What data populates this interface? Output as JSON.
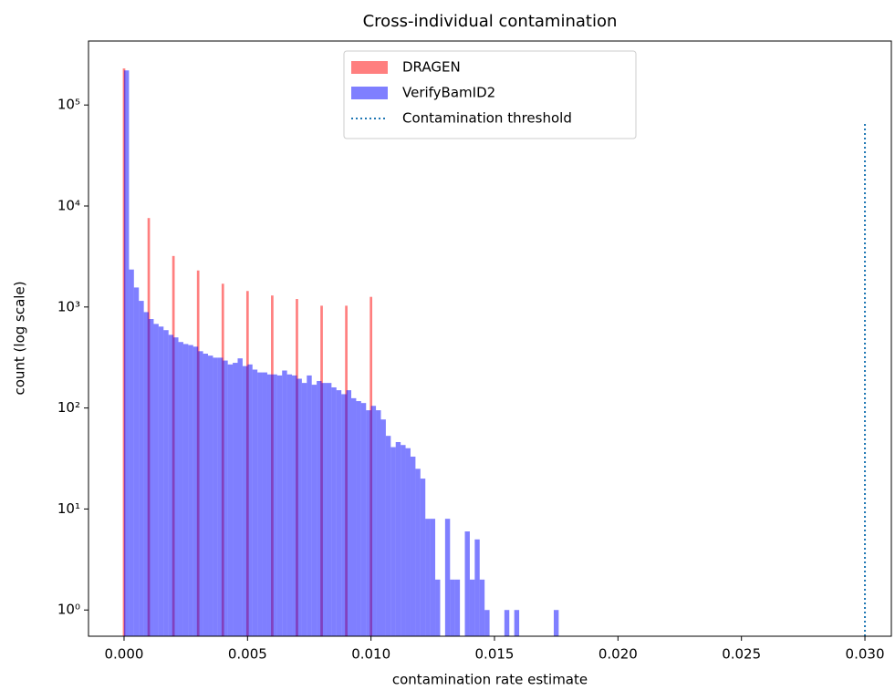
{
  "chart_data": {
    "type": "histogram",
    "title": "Cross-individual contamination",
    "xlabel": "contamination rate estimate",
    "ylabel": "count (log scale)",
    "yscale": "log",
    "xlim": [
      -0.00144,
      0.03107
    ],
    "ylim": [
      0.55,
      430000
    ],
    "xticks": [
      {
        "value": 0,
        "label": "0.000"
      },
      {
        "value": 0.005,
        "label": "0.005"
      },
      {
        "value": 0.01,
        "label": "0.010"
      },
      {
        "value": 0.015,
        "label": "0.015"
      },
      {
        "value": 0.02,
        "label": "0.020"
      },
      {
        "value": 0.025,
        "label": "0.025"
      },
      {
        "value": 0.03,
        "label": "0.030"
      }
    ],
    "yticks": [
      {
        "value": 1,
        "label": "10⁰"
      },
      {
        "value": 10,
        "label": "10¹"
      },
      {
        "value": 100,
        "label": "10²"
      },
      {
        "value": 1000,
        "label": "10³"
      },
      {
        "value": 10000,
        "label": "10⁴"
      },
      {
        "value": 100000,
        "label": "10⁵"
      }
    ],
    "legend": "upper center",
    "series": [
      {
        "name": "DRAGEN",
        "color": "#ff0000",
        "alpha": 0.5,
        "bins": [
          -5e-05,
          5e-05,
          0.00095,
          0.00105,
          0.00195,
          0.00205,
          0.00295,
          0.00305,
          0.00395,
          0.00405,
          0.00495,
          0.00505,
          0.00595,
          0.00605,
          0.00695,
          0.00705,
          0.00795,
          0.00805,
          0.00895,
          0.00905,
          0.00995,
          0.01005
        ],
        "values": [
          230000,
          0,
          7600,
          0,
          3200,
          0,
          2300,
          0,
          1700,
          0,
          1440,
          0,
          1300,
          0,
          1200,
          0,
          1030,
          0,
          1030,
          0,
          1260
        ]
      },
      {
        "name": "VerifyBamID2",
        "color": "#0000ff",
        "alpha": 0.5,
        "bins": [
          0,
          0.0002,
          0.0004,
          0.0006,
          0.0008,
          0.001,
          0.0012,
          0.0014,
          0.0016,
          0.0018,
          0.002,
          0.0022,
          0.0024,
          0.0026,
          0.0028,
          0.003,
          0.0032,
          0.0034,
          0.0036,
          0.0038,
          0.004,
          0.0042,
          0.0044,
          0.0046,
          0.0048,
          0.005,
          0.0052,
          0.0054,
          0.0056,
          0.0058,
          0.006,
          0.0062,
          0.0064,
          0.0066,
          0.0068,
          0.007,
          0.0072,
          0.0074,
          0.0076,
          0.0078,
          0.008,
          0.0082,
          0.0084,
          0.0086,
          0.0088,
          0.009,
          0.0092,
          0.0094,
          0.0096,
          0.0098,
          0.01,
          0.0102,
          0.0104,
          0.0106,
          0.0108,
          0.011,
          0.0112,
          0.0114,
          0.0116,
          0.0118,
          0.012,
          0.0122,
          0.0124,
          0.0126,
          0.0128,
          0.013,
          0.0132,
          0.0134,
          0.0136,
          0.0138,
          0.014,
          0.0142,
          0.0144,
          0.0146,
          0.0148,
          0.015,
          0.0152,
          0.0154,
          0.0156,
          0.0158,
          0.016,
          0.0162,
          0.0164,
          0.0166,
          0.0168,
          0.017,
          0.0172,
          0.0174,
          0.0176
        ],
        "values": [
          220000,
          2350,
          1560,
          1150,
          890,
          760,
          680,
          640,
          590,
          530,
          500,
          450,
          430,
          420,
          405,
          365,
          345,
          330,
          315,
          315,
          295,
          270,
          280,
          310,
          260,
          270,
          240,
          225,
          225,
          215,
          215,
          210,
          235,
          215,
          210,
          195,
          177,
          210,
          170,
          185,
          177,
          177,
          160,
          150,
          137,
          150,
          125,
          117,
          112,
          95,
          105,
          95,
          77,
          53,
          41,
          46,
          43,
          40,
          33,
          25,
          20,
          8,
          8,
          2,
          0,
          8,
          2,
          2,
          0,
          6,
          2,
          5,
          2,
          1,
          0,
          0,
          0,
          1,
          0,
          1,
          0,
          0,
          0,
          0,
          0,
          0,
          0,
          1
        ]
      }
    ],
    "threshold": {
      "name": "Contamination threshold",
      "x": 0.03,
      "ymax": 65000,
      "color": "#1f77b4",
      "linestyle": "dotted"
    }
  }
}
